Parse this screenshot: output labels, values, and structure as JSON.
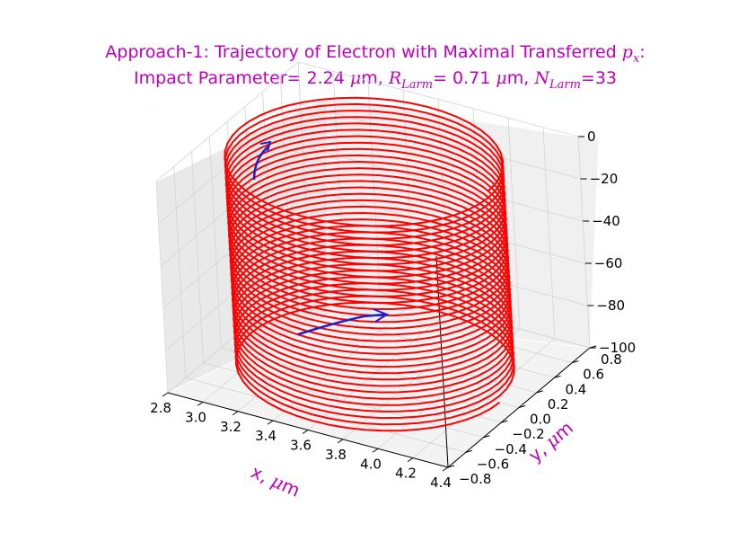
{
  "chart_data": {
    "type": "line",
    "projection": "3d",
    "title": {
      "line1_prefix": "Approach-1: Trajectory of Electron with Maximal Transferred ",
      "line1_math": "p",
      "line1_math_sub": "x",
      "line1_suffix": ":",
      "line2_a": "Impact Parameter= 2.24 ",
      "line2_mu": "μ",
      "line2_b": "m, ",
      "line2_R": "R",
      "line2_R_sub": "Larm",
      "line2_c": "= 0.71 ",
      "line2_mu2": "μ",
      "line2_d": "m, ",
      "line2_N": "N",
      "line2_N_sub": "Larm",
      "line2_e": "=33"
    },
    "xlabel": {
      "text": "x, ",
      "mu": "μ",
      "unit": "m"
    },
    "ylabel": {
      "text": "y, ",
      "mu": "μ",
      "unit": "m"
    },
    "xlim": [
      2.8,
      4.4
    ],
    "ylim": [
      -0.8,
      0.8
    ],
    "zlim": [
      -100,
      0
    ],
    "x_ticks": [
      "2.8",
      "3.0",
      "3.2",
      "3.4",
      "3.6",
      "3.8",
      "4.0",
      "4.2",
      "4.4"
    ],
    "y_ticks": [
      "−0.8",
      "−0.6",
      "−0.4",
      "−0.2",
      "0.0",
      "0.2",
      "0.4",
      "0.6",
      "0.8"
    ],
    "z_ticks": [
      "0",
      "−20",
      "−40",
      "−60",
      "−80",
      "−100"
    ],
    "grid": true,
    "trajectory": {
      "name": "electron",
      "center_x": 3.58,
      "center_y": 0.0,
      "radius": 0.71,
      "turns": 33,
      "z_start": 0,
      "z_end": -100,
      "color": "#ff0000"
    },
    "arrows": [
      {
        "name": "start",
        "color": "#1f1fd0"
      },
      {
        "name": "end",
        "color": "#1f1fd0"
      }
    ],
    "colors": {
      "title": "#bf00bf",
      "axis_labels": "#bf00bf",
      "pane_left": "#e9e9e9",
      "pane_back": "#f0f0f0",
      "pane_floor": "#f3f3f3"
    }
  }
}
